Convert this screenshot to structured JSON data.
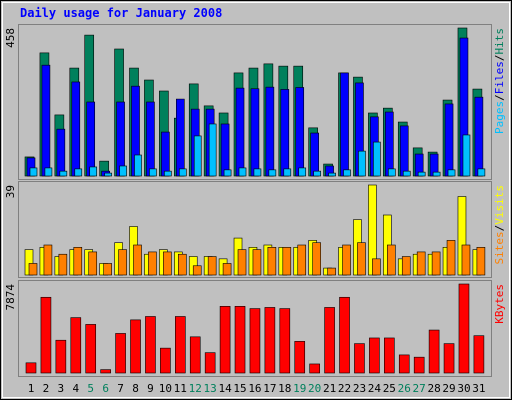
{
  "title": "Daily usage for January 2008",
  "legend_separator": "/",
  "chart_data": [
    {
      "type": "bar",
      "ylim": [
        0,
        458
      ],
      "yticks": [
        458
      ],
      "series": [
        {
          "name": "Hits",
          "color": "#00805c",
          "values": [
            59,
            381,
            189,
            334,
            436,
            46,
            393,
            334,
            297,
            263,
            179,
            285,
            217,
            195,
            319,
            334,
            347,
            340,
            340,
            149,
            37,
            319,
            306,
            195,
            210,
            167,
            87,
            74,
            235,
            458,
            269
          ]
        },
        {
          "name": "Files",
          "color": "#0000ff",
          "values": [
            56,
            343,
            145,
            291,
            229,
            15,
            229,
            278,
            229,
            136,
            238,
            207,
            207,
            161,
            272,
            270,
            275,
            268,
            274,
            133,
            31,
            319,
            288,
            183,
            198,
            155,
            68,
            68,
            223,
            427,
            244
          ]
        },
        {
          "name": "Pages",
          "color": "#00c0ff",
          "values": [
            25,
            25,
            15,
            22,
            28,
            9,
            31,
            65,
            22,
            15,
            22,
            124,
            161,
            19,
            25,
            22,
            19,
            22,
            25,
            15,
            9,
            19,
            77,
            105,
            22,
            15,
            12,
            12,
            19,
            127,
            22
          ]
        }
      ]
    },
    {
      "type": "bar",
      "ylim": [
        0,
        39
      ],
      "yticks": [
        39
      ],
      "series": [
        {
          "name": "Visits",
          "color": "#ffff00",
          "values": [
            11,
            12,
            8,
            11,
            11,
            5,
            14,
            21,
            9,
            11,
            10,
            8,
            8,
            7,
            16,
            12,
            13,
            12,
            12,
            15,
            3,
            12,
            24,
            39,
            26,
            7,
            9,
            9,
            12,
            34,
            11
          ]
        },
        {
          "name": "Sites",
          "color": "#ff8000",
          "values": [
            5,
            13,
            9,
            12,
            10,
            5,
            11,
            13,
            10,
            10,
            9,
            4,
            8,
            5,
            11,
            11,
            12,
            12,
            13,
            14,
            3,
            13,
            14,
            7,
            13,
            8,
            10,
            10,
            15,
            13,
            12
          ]
        }
      ]
    },
    {
      "type": "bar",
      "ylim": [
        0,
        7874
      ],
      "yticks": [
        7874
      ],
      "categories": [
        "1",
        "2",
        "3",
        "4",
        "5",
        "6",
        "7",
        "8",
        "9",
        "10",
        "11",
        "12",
        "13",
        "14",
        "15",
        "16",
        "17",
        "18",
        "19",
        "20",
        "21",
        "22",
        "23",
        "24",
        "25",
        "26",
        "27",
        "28",
        "29",
        "30",
        "31"
      ],
      "category_colors": [
        "#000000",
        "#000000",
        "#000000",
        "#000000",
        "#00805c",
        "#00805c",
        "#000000",
        "#000000",
        "#000000",
        "#000000",
        "#000000",
        "#00805c",
        "#00805c",
        "#000000",
        "#000000",
        "#000000",
        "#000000",
        "#000000",
        "#00805c",
        "#00805c",
        "#000000",
        "#000000",
        "#000000",
        "#000000",
        "#000000",
        "#00805c",
        "#00805c",
        "#000000",
        "#000000",
        "#000000",
        "#000000"
      ],
      "series": [
        {
          "name": "KBytes",
          "color": "#ff0000",
          "values": [
            900,
            6700,
            2900,
            4900,
            4300,
            300,
            3500,
            4700,
            5000,
            2200,
            5000,
            3200,
            1800,
            5900,
            5900,
            5700,
            5800,
            5700,
            2800,
            800,
            5800,
            6700,
            2600,
            3100,
            3100,
            1600,
            1400,
            3800,
            2600,
            7874,
            3300
          ]
        }
      ]
    }
  ]
}
